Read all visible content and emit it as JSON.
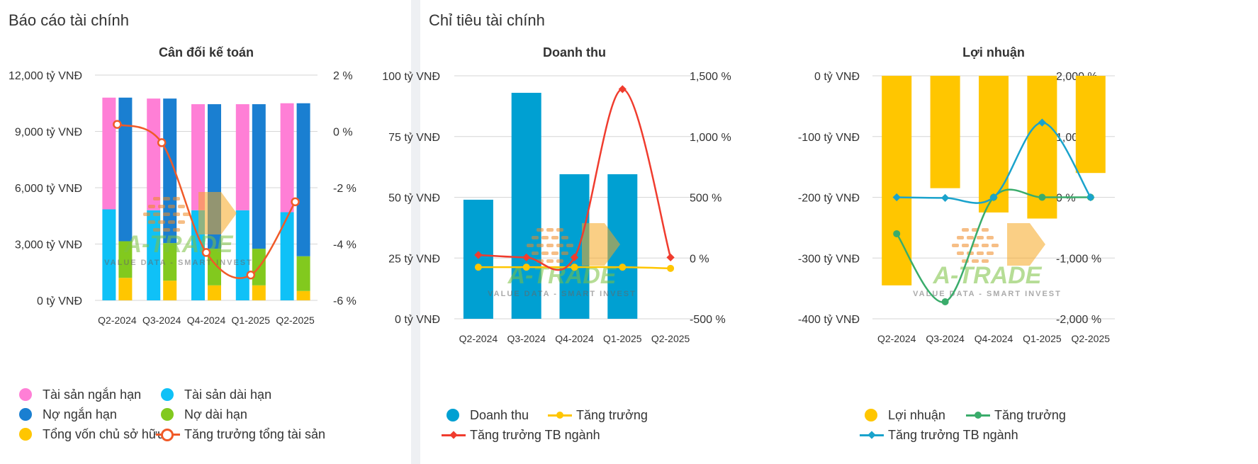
{
  "left_panel": {
    "title": "Báo cáo tài chính"
  },
  "right_panel": {
    "title": "Chỉ tiêu tài chính"
  },
  "colors": {
    "short_assets": "#ff7fd6",
    "long_assets": "#0fc1f7",
    "short_liab": "#1a7fd1",
    "long_liab": "#82c91e",
    "equity": "#ffc600",
    "asset_growth": "#f05a28",
    "revenue": "#00a0d2",
    "growth_yellow": "#ffc600",
    "industry_red": "#f03c2e",
    "profit": "#ffc600",
    "growth_green": "#3aac6b",
    "industry_blue": "#1aa3cc"
  },
  "watermark": {
    "brand": "A-TRADE",
    "tagline": "VALUE DATA - SMART INVEST"
  },
  "chart_data": [
    {
      "type": "bar",
      "stacked": true,
      "title": "Cân đối kế toán",
      "categories": [
        "Q2-2024",
        "Q3-2024",
        "Q4-2024",
        "Q1-2025",
        "Q2-2025"
      ],
      "y_left": {
        "ticks": [
          "0 tỷ VNĐ",
          "3,000 tỷ VNĐ",
          "6,000 tỷ VNĐ",
          "9,000 tỷ VNĐ",
          "12,000 tỷ VNĐ"
        ],
        "range": [
          0,
          12000
        ]
      },
      "y_right": {
        "ticks": [
          "-6 %",
          "-4 %",
          "-2 %",
          "0 %",
          "2 %"
        ],
        "range": [
          -6,
          2
        ]
      },
      "stacks": [
        {
          "stack": "assets",
          "series": [
            {
              "name": "Tài sản dài hạn",
              "values": [
                4850,
                4800,
                4800,
                4800,
                4700
              ]
            },
            {
              "name": "Tài sản ngắn hạn",
              "values": [
                5950,
                5950,
                5650,
                5650,
                5800
              ]
            }
          ]
        },
        {
          "stack": "capital",
          "series": [
            {
              "name": "Tổng vốn chủ sở hữu",
              "values": [
                1200,
                1050,
                800,
                800,
                500
              ]
            },
            {
              "name": "Nợ dài hạn",
              "values": [
                1950,
                2000,
                1950,
                1950,
                1850
              ]
            },
            {
              "name": "Nợ ngắn hạn",
              "values": [
                7650,
                7700,
                7700,
                7700,
                8150
              ]
            }
          ]
        }
      ],
      "line_series": [
        {
          "name": "Tăng trưởng tổng tài sản",
          "values": [
            0.25,
            -0.4,
            -4.3,
            -5.1,
            -2.5
          ],
          "axis": "right"
        }
      ],
      "legend": [
        [
          "Tài sản ngắn hạn",
          "Tài sản dài hạn"
        ],
        [
          "Nợ ngắn hạn",
          "Nợ dài hạn"
        ],
        [
          "Tổng vốn chủ sở hữu",
          "Tăng trưởng tổng tài sản"
        ]
      ]
    },
    {
      "type": "bar",
      "title": "Doanh thu",
      "categories": [
        "Q2-2024",
        "Q3-2024",
        "Q4-2024",
        "Q1-2025",
        "Q2-2025"
      ],
      "y_left": {
        "ticks": [
          "0 tỷ VNĐ",
          "25 tỷ VNĐ",
          "50 tỷ VNĐ",
          "75 tỷ VNĐ",
          "100 tỷ VNĐ"
        ],
        "range": [
          0,
          100
        ]
      },
      "y_right": {
        "ticks": [
          "-500 %",
          "0 %",
          "500 %",
          "1,000 %",
          "1,500 %"
        ],
        "range": [
          -500,
          1500
        ]
      },
      "series": [
        {
          "name": "Doanh thu",
          "values": [
            49,
            93,
            59.5,
            59.5,
            0
          ]
        }
      ],
      "line_series": [
        {
          "name": "Tăng trưởng",
          "values": [
            -75,
            -75,
            -75,
            -75,
            -85
          ],
          "axis": "right"
        },
        {
          "name": "Tăng trưởng TB ngành",
          "values": [
            25,
            5,
            5,
            1390,
            5
          ],
          "axis": "right"
        }
      ],
      "legend": [
        [
          "Doanh thu",
          "Tăng trưởng"
        ],
        [
          "Tăng trưởng TB ngành"
        ]
      ]
    },
    {
      "type": "bar",
      "title": "Lợi nhuận",
      "categories": [
        "Q2-2024",
        "Q3-2024",
        "Q4-2024",
        "Q1-2025",
        "Q2-2025"
      ],
      "y_left": {
        "ticks": [
          "-400 tỷ VNĐ",
          "-300 tỷ VNĐ",
          "-200 tỷ VNĐ",
          "-100 tỷ VNĐ",
          "0 tỷ VNĐ"
        ],
        "range": [
          -400,
          0
        ]
      },
      "y_right": {
        "ticks": [
          "-2,000 %",
          "-1,000 %",
          "0 %",
          "1,000 %",
          "2,000 %"
        ],
        "range": [
          -2000,
          2000
        ]
      },
      "series": [
        {
          "name": "Lợi nhuận",
          "values": [
            -345,
            -185,
            -225,
            -235,
            -160
          ]
        }
      ],
      "line_series": [
        {
          "name": "Tăng trưởng",
          "values": [
            -600,
            -1720,
            0,
            0,
            0
          ],
          "axis": "right"
        },
        {
          "name": "Tăng trưởng TB ngành",
          "values": [
            0,
            -10,
            0,
            1230,
            0
          ],
          "axis": "right"
        }
      ],
      "legend": [
        [
          "Lợi nhuận",
          "Tăng trưởng"
        ],
        [
          "Tăng trưởng TB ngành"
        ]
      ]
    }
  ]
}
